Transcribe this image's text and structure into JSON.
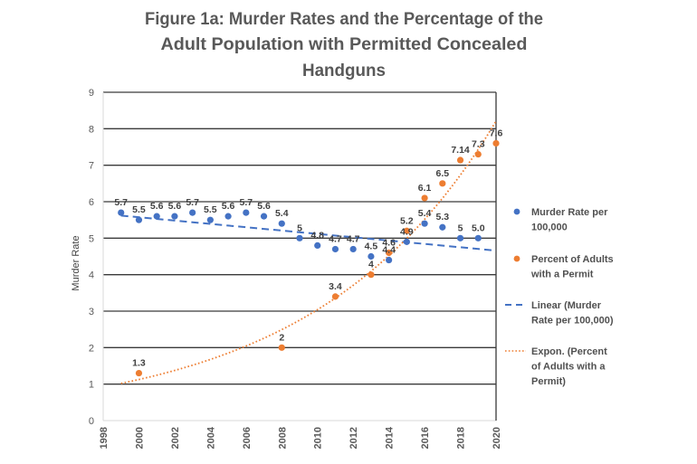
{
  "chart_data": {
    "type": "scatter",
    "title": "Figure 1a: Murder Rates and the Percentage of the Adult Population with Permitted Concealed Handguns",
    "title_lines": [
      "Figure 1a: Murder Rates and the Percentage of the",
      "Adult Population with Permitted Concealed",
      "Handguns"
    ],
    "xlabel": "",
    "ylabel": "Murder Rate",
    "xlim": [
      1998,
      2020
    ],
    "ylim": [
      0,
      9
    ],
    "x_ticks": [
      1998,
      2000,
      2002,
      2004,
      2006,
      2008,
      2010,
      2012,
      2014,
      2016,
      2018,
      2020
    ],
    "y_ticks": [
      0,
      1,
      2,
      3,
      4,
      5,
      6,
      7,
      8,
      9
    ],
    "grid": "horizontal",
    "legend_position": "right",
    "series": [
      {
        "name": "Murder Rate per 100,000",
        "color": "#4472C4",
        "x": [
          1999,
          2000,
          2001,
          2002,
          2003,
          2004,
          2005,
          2006,
          2007,
          2008,
          2009,
          2010,
          2011,
          2012,
          2013,
          2014,
          2015,
          2016,
          2017,
          2018,
          2019
        ],
        "y": [
          5.7,
          5.5,
          5.6,
          5.6,
          5.7,
          5.5,
          5.6,
          5.7,
          5.6,
          5.4,
          5.0,
          4.8,
          4.7,
          4.7,
          4.5,
          4.4,
          4.9,
          5.4,
          5.3,
          5.0,
          5.0
        ],
        "labels": [
          "5.7",
          "5.5",
          "5.6",
          "5.6",
          "5.7",
          "5.5",
          "5.6",
          "5.7",
          "5.6",
          "5.4",
          "5",
          "4.8",
          "4.7",
          "4.7",
          "4.5",
          "4.4",
          "4.9",
          "5.4",
          "5.3",
          "5",
          "5.0"
        ]
      },
      {
        "name": "Percent of Adults with a Permit",
        "color": "#ED7D31",
        "x": [
          2000,
          2008,
          2011,
          2013,
          2014,
          2015,
          2016,
          2017,
          2018,
          2019,
          2020
        ],
        "y": [
          1.3,
          2.0,
          3.4,
          4.0,
          4.6,
          5.2,
          6.1,
          6.5,
          7.14,
          7.3,
          7.6
        ],
        "labels": [
          "1.3",
          "2",
          "3.4",
          "4",
          "4.6",
          "5.2",
          "6.1",
          "6.5",
          "7.14",
          "7.3",
          "7.6"
        ]
      }
    ],
    "trendlines": [
      {
        "name": "Linear (Murder Rate per 100,000)",
        "type": "linear",
        "style": "dashed",
        "color": "#4472C4",
        "x_range": [
          1999,
          2020
        ],
        "y_start": 5.62,
        "y_end": 4.66
      },
      {
        "name": "Expon. (Percent of Adults with a Permit)",
        "type": "exponential",
        "style": "dotted",
        "color": "#ED7D31",
        "x_range": [
          1999,
          2020
        ],
        "y_start": 1.02,
        "growth_rate": 0.0993
      }
    ],
    "legend": [
      {
        "marker": "dot",
        "color": "#4472C4",
        "lines": [
          "Murder Rate per",
          "100,000"
        ]
      },
      {
        "marker": "dot",
        "color": "#ED7D31",
        "lines": [
          "Percent of Adults",
          "with a Permit"
        ]
      },
      {
        "marker": "dashed",
        "color": "#4472C4",
        "lines": [
          "Linear (Murder",
          "Rate per 100,000)"
        ]
      },
      {
        "marker": "dotted",
        "color": "#ED7D31",
        "lines": [
          "Expon. (Percent",
          "of Adults with a",
          "Permit)"
        ]
      }
    ]
  }
}
